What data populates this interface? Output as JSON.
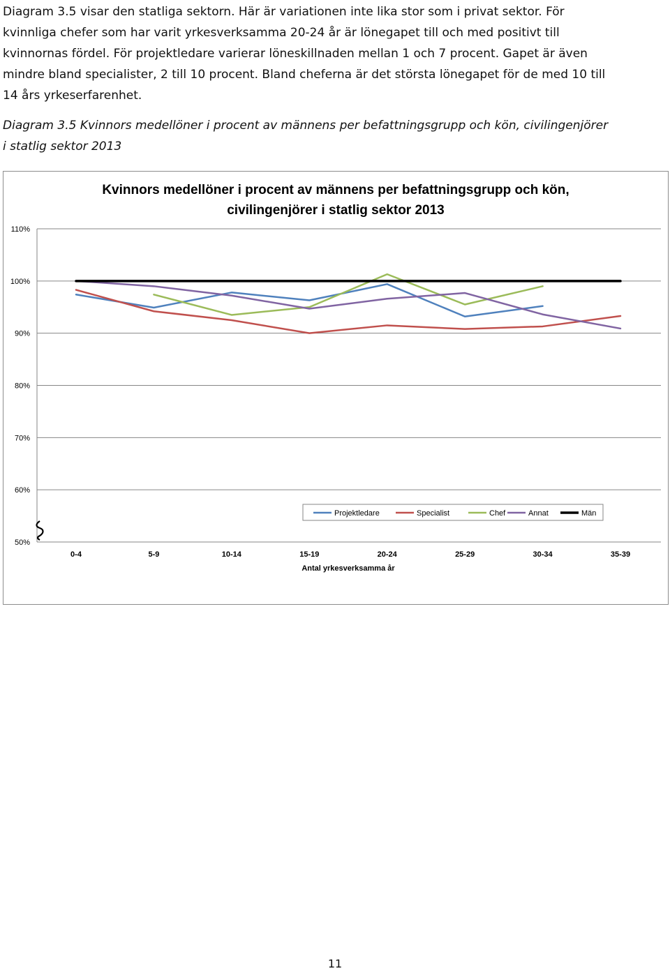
{
  "paragraph": {
    "lines": [
      "Diagram 3.5 visar den statliga sektorn. Här är variationen inte lika stor som i privat sektor. För",
      "kvinnliga chefer som har varit yrkesverksamma 20-24 år är lönegapet till och med positivt till",
      "kvinnornas fördel. För projektledare varierar löneskillnaden mellan 1 och 7 procent. Gapet är även",
      "mindre bland specialister, 2 till 10 procent. Bland cheferna är det största lönegapet för de med 10 till",
      "14 års yrkeserfarenhet."
    ]
  },
  "caption": {
    "lines": [
      "Diagram 3.5 Kvinnors medellöner i procent av männens per befattningsgrupp och kön, civilingenjörer",
      "i statlig sektor 2013"
    ]
  },
  "page_number": "11",
  "chart_data": {
    "type": "line",
    "title_lines": [
      "Kvinnors medellöner i procent av männens per befattningsgrupp och kön,",
      "civilingenjörer i statlig sektor 2013"
    ],
    "xlabel": "Antal yrkesverksamma år",
    "ylabel": "",
    "categories": [
      "0-4",
      "5-9",
      "10-14",
      "15-19",
      "20-24",
      "25-29",
      "30-34",
      "35-39"
    ],
    "ylim": [
      50,
      110
    ],
    "yticks": [
      50,
      60,
      70,
      80,
      90,
      100,
      110
    ],
    "ytick_labels": [
      "50%",
      "60%",
      "70%",
      "80%",
      "90%",
      "100%",
      "110%"
    ],
    "axis_break_symbol": "≀",
    "grid": true,
    "legend_position": "bottom-right",
    "series": [
      {
        "name": "Projektledare",
        "color": "#4f81bd",
        "values": [
          97.4,
          94.9,
          97.8,
          96.3,
          99.4,
          93.2,
          95.2,
          null
        ]
      },
      {
        "name": "Specialist",
        "color": "#c0504d",
        "values": [
          98.3,
          94.2,
          92.5,
          90.0,
          91.5,
          90.8,
          91.3,
          93.3
        ]
      },
      {
        "name": "Chef",
        "color": "#9bbb59",
        "values": [
          null,
          97.4,
          93.5,
          95.0,
          101.3,
          95.5,
          99.0,
          null
        ]
      },
      {
        "name": "Annat",
        "color": "#8064a2",
        "values": [
          100.0,
          99.0,
          97.2,
          94.7,
          96.6,
          97.7,
          93.6,
          90.9
        ]
      },
      {
        "name": "Män",
        "color": "#000000",
        "values": [
          100,
          100,
          100,
          100,
          100,
          100,
          100,
          100
        ]
      }
    ]
  }
}
